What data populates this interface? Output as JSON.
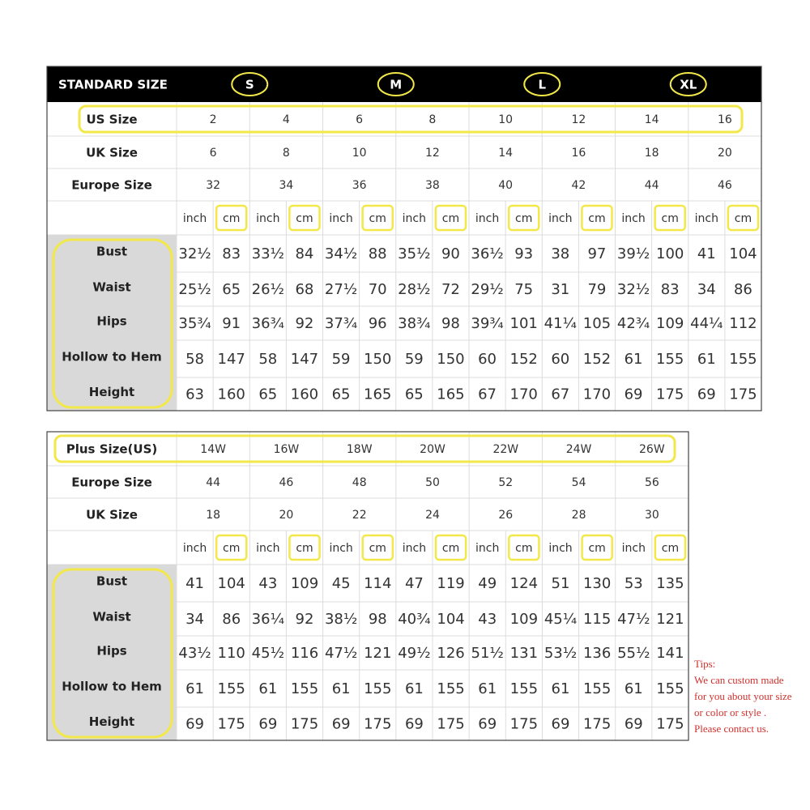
{
  "table1": {
    "header": {
      "title": "STANDARD SIZE",
      "sizes": [
        "S",
        "M",
        "L",
        "XL"
      ]
    },
    "size_rows": [
      {
        "label": "US Size",
        "values": [
          "2",
          "4",
          "6",
          "8",
          "10",
          "12",
          "14",
          "16"
        ]
      },
      {
        "label": "UK Size",
        "values": [
          "6",
          "8",
          "10",
          "12",
          "14",
          "16",
          "18",
          "20"
        ]
      },
      {
        "label": "Europe Size",
        "values": [
          "32",
          "34",
          "36",
          "38",
          "40",
          "42",
          "44",
          "46"
        ]
      }
    ],
    "units": [
      "inch",
      "cm",
      "inch",
      "cm",
      "inch",
      "cm",
      "inch",
      "cm",
      "inch",
      "cm",
      "inch",
      "cm",
      "inch",
      "cm",
      "inch",
      "cm"
    ],
    "measure_rows": [
      {
        "label": "Bust",
        "values": [
          "32½",
          "83",
          "33½",
          "84",
          "34½",
          "88",
          "35½",
          "90",
          "36½",
          "93",
          "38",
          "97",
          "39½",
          "100",
          "41",
          "104"
        ]
      },
      {
        "label": "Waist",
        "values": [
          "25½",
          "65",
          "26½",
          "68",
          "27½",
          "70",
          "28½",
          "72",
          "29½",
          "75",
          "31",
          "79",
          "32½",
          "83",
          "34",
          "86"
        ]
      },
      {
        "label": "Hips",
        "values": [
          "35¾",
          "91",
          "36¾",
          "92",
          "37¾",
          "96",
          "38¾",
          "98",
          "39¾",
          "101",
          "41¼",
          "105",
          "42¾",
          "109",
          "44¼",
          "112"
        ]
      },
      {
        "label": "Hollow to Hem",
        "values": [
          "58",
          "147",
          "58",
          "147",
          "59",
          "150",
          "59",
          "150",
          "60",
          "152",
          "60",
          "152",
          "61",
          "155",
          "61",
          "155"
        ]
      },
      {
        "label": "Height",
        "values": [
          "63",
          "160",
          "65",
          "160",
          "65",
          "165",
          "65",
          "165",
          "67",
          "170",
          "67",
          "170",
          "69",
          "175",
          "69",
          "175"
        ]
      }
    ]
  },
  "table2": {
    "size_rows": [
      {
        "label": "Plus Size(US)",
        "values": [
          "14W",
          "16W",
          "18W",
          "20W",
          "22W",
          "24W",
          "26W"
        ]
      },
      {
        "label": "Europe Size",
        "values": [
          "44",
          "46",
          "48",
          "50",
          "52",
          "54",
          "56"
        ]
      },
      {
        "label": "UK Size",
        "values": [
          "18",
          "20",
          "22",
          "24",
          "26",
          "28",
          "30"
        ]
      }
    ],
    "units": [
      "inch",
      "cm",
      "inch",
      "cm",
      "inch",
      "cm",
      "inch",
      "cm",
      "inch",
      "cm",
      "inch",
      "cm",
      "inch",
      "cm"
    ],
    "measure_rows": [
      {
        "label": "Bust",
        "values": [
          "41",
          "104",
          "43",
          "109",
          "45",
          "114",
          "47",
          "119",
          "49",
          "124",
          "51",
          "130",
          "53",
          "135"
        ]
      },
      {
        "label": "Waist",
        "values": [
          "34",
          "86",
          "36¼",
          "92",
          "38½",
          "98",
          "40¾",
          "104",
          "43",
          "109",
          "45¼",
          "115",
          "47½",
          "121"
        ]
      },
      {
        "label": "Hips",
        "values": [
          "43½",
          "110",
          "45½",
          "116",
          "47½",
          "121",
          "49½",
          "126",
          "51½",
          "131",
          "53½",
          "136",
          "55½",
          "141"
        ]
      },
      {
        "label": "Hollow to Hem",
        "values": [
          "61",
          "155",
          "61",
          "155",
          "61",
          "155",
          "61",
          "155",
          "61",
          "155",
          "61",
          "155",
          "61",
          "155"
        ]
      },
      {
        "label": "Height",
        "values": [
          "69",
          "175",
          "69",
          "175",
          "69",
          "175",
          "69",
          "175",
          "69",
          "175",
          "69",
          "175",
          "69",
          "175"
        ]
      }
    ]
  },
  "tips": {
    "lines": [
      "Tips:",
      "We can custom made",
      "for you about your size",
      "or color or style .",
      "Please contact us."
    ]
  }
}
